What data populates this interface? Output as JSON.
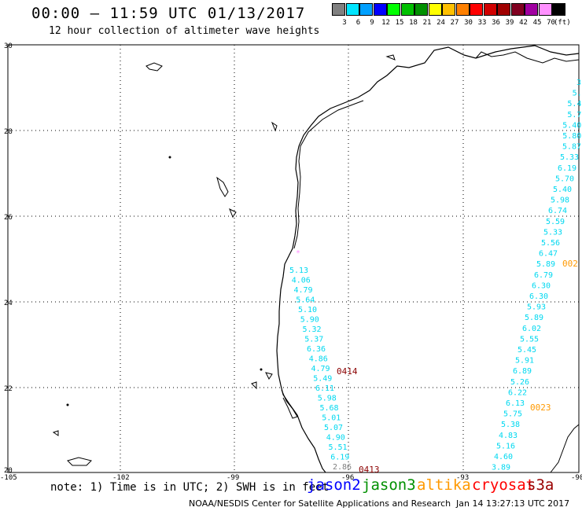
{
  "header": {
    "title": "00:00 – 11:59 UTC 01/13/2017",
    "subtitle": "12 hour collection of altimeter wave heights"
  },
  "legend": {
    "unit": "(ft)",
    "items": [
      {
        "label": "3",
        "color": "#808080"
      },
      {
        "label": "6",
        "color": "#00e5ff"
      },
      {
        "label": "9",
        "color": "#00a0ff"
      },
      {
        "label": "12",
        "color": "#0000ff"
      },
      {
        "label": "15",
        "color": "#00ff00"
      },
      {
        "label": "18",
        "color": "#00c000"
      },
      {
        "label": "21",
        "color": "#009000"
      },
      {
        "label": "24",
        "color": "#ffff00"
      },
      {
        "label": "27",
        "color": "#ffc000"
      },
      {
        "label": "30",
        "color": "#ff8000"
      },
      {
        "label": "33",
        "color": "#ff0000"
      },
      {
        "label": "36",
        "color": "#d00000"
      },
      {
        "label": "39",
        "color": "#a00000"
      },
      {
        "label": "42",
        "color": "#800020"
      },
      {
        "label": "45",
        "color": "#a000a0"
      },
      {
        "label": "70",
        "color": "#ff90ff"
      },
      {
        "label": "",
        "color": "#000000"
      }
    ]
  },
  "axes": {
    "lat_labels": [
      "30",
      "28",
      "26",
      "24",
      "22",
      "20"
    ],
    "lon_labels": [
      "-105",
      "-102",
      "-99",
      "-96",
      "-93",
      "-90"
    ]
  },
  "tracks": {
    "left_track": [
      "5.13",
      "4.06",
      "4.79",
      "5.64",
      "5.10",
      "5.90",
      "5.32",
      "5.37",
      "6.36",
      "4.86",
      "4.79",
      "5.49",
      "6.11",
      "5.98",
      "5.68",
      "5.01",
      "5.07",
      "4.90",
      "5.51",
      "6.19",
      "2.86"
    ],
    "right_track": [
      "3",
      "5.",
      "5.4",
      "5.7",
      "5.40",
      "5.80",
      "5.87",
      "5.33",
      "6.19",
      "5.70",
      "5.40",
      "5.98",
      "6.74",
      "5.59",
      "5.33",
      "5.56",
      "6.47",
      "5.89",
      "6.79",
      "6.30",
      "6.30",
      "5.93",
      "5.89",
      "6.02",
      "5.55",
      "5.45",
      "5.91",
      "6.89",
      "5.26",
      "6.22",
      "6.13",
      "5.75",
      "5.38",
      "4.83",
      "5.16",
      "4.60",
      "3.89"
    ]
  },
  "pass_labels": [
    {
      "text": "0414",
      "color": "#8b0000"
    },
    {
      "text": "0413",
      "color": "#8b0000"
    },
    {
      "text": "0023",
      "color": "#ff9900"
    },
    {
      "text": "002",
      "color": "#ff9900"
    }
  ],
  "footer": {
    "note": "note: 1) Time is in UTC; 2) SWH is in feet",
    "satellites": [
      {
        "name": "jason2",
        "color": "#0000ff"
      },
      {
        "name": "jason3",
        "color": "#009000"
      },
      {
        "name": "altika",
        "color": "#ff9900"
      },
      {
        "name": "cryosat",
        "color": "#ff0000"
      },
      {
        "name": "s3a",
        "color": "#990000"
      }
    ],
    "credit": "NOAA/NESDIS Center for Satellite Applications and Research",
    "timestamp": "Jan 14 13:27:13 UTC 2017"
  }
}
